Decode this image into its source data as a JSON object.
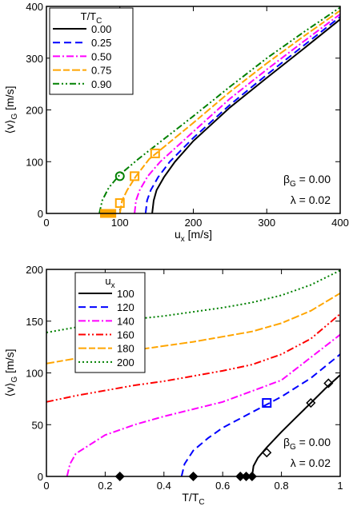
{
  "chart_data": [
    {
      "type": "line",
      "xlabel": "u",
      "xlabel_sub": "x",
      "xlabel_unit": " [m/s]",
      "ylabel": "⟨v⟩",
      "ylabel_sub": "G",
      "ylabel_unit": " [m/s]",
      "xlim": [
        0,
        400
      ],
      "ylim": [
        0,
        400
      ],
      "xticks": [
        0,
        100,
        200,
        300,
        400
      ],
      "yticks": [
        0,
        100,
        200,
        300,
        400
      ],
      "grid": false,
      "legend_title": "T/T",
      "legend_title_sub": "C",
      "legend_position": "top-left",
      "annotation_beta": "β",
      "annotation_beta_sub": "G",
      "annotation_beta_rest": " = 0.00",
      "annotation_lambda": "λ = 0.02",
      "series": [
        {
          "name": "0.00",
          "color": "#000000",
          "dash": "",
          "x0": 144,
          "x": [
            144,
            146,
            150,
            160,
            175,
            200,
            250,
            300,
            350,
            400
          ],
          "y": [
            0,
            25,
            45,
            70,
            100,
            140,
            205,
            262,
            318,
            375
          ]
        },
        {
          "name": "0.25",
          "color": "#0000ff",
          "dash": "9,5",
          "x0": 135,
          "x": [
            135,
            137,
            142,
            152,
            168,
            200,
            250,
            300,
            350,
            400
          ],
          "y": [
            0,
            25,
            45,
            70,
            100,
            146,
            210,
            268,
            324,
            380
          ]
        },
        {
          "name": "0.50",
          "color": "#ff00ff",
          "dash": "9,3,2,3",
          "x0": 120,
          "x": [
            120,
            122,
            127,
            138,
            155,
            200,
            250,
            300,
            350,
            400
          ],
          "y": [
            0,
            25,
            45,
            72,
            100,
            158,
            222,
            278,
            332,
            385
          ]
        },
        {
          "name": "0.75",
          "color": "#ffa500",
          "dash": "10,3,8,3",
          "x0": 100,
          "x": [
            100,
            103,
            110,
            122,
            140,
            200,
            250,
            300,
            350,
            400
          ],
          "y": [
            0,
            25,
            45,
            72,
            105,
            175,
            235,
            290,
            342,
            392
          ]
        },
        {
          "name": "0.90",
          "color": "#008000",
          "dash": "8,3,2,3,2,3",
          "x0": 72,
          "x": [
            72,
            76,
            85,
            100,
            125,
            200,
            250,
            300,
            350,
            400
          ],
          "y": [
            0,
            25,
            50,
            75,
            105,
            188,
            245,
            300,
            350,
            398
          ]
        }
      ],
      "markers": [
        {
          "x": 148,
          "y": 116,
          "shape": "square-open",
          "color": "#ffa500"
        },
        {
          "x": 120,
          "y": 72,
          "shape": "square-open",
          "color": "#ffa500"
        },
        {
          "x": 100,
          "y": 20,
          "shape": "square-open",
          "color": "#ffa500"
        },
        {
          "x": 100,
          "y": 72,
          "shape": "circle-open",
          "color": "#008000"
        },
        {
          "x": 79,
          "y": 0,
          "shape": "square-filled",
          "color": "#ffa500"
        },
        {
          "x": 84,
          "y": 0,
          "shape": "square-filled",
          "color": "#ffa500"
        },
        {
          "x": 89,
          "y": 0,
          "shape": "square-filled",
          "color": "#ffa500"
        }
      ]
    },
    {
      "type": "line",
      "xlabel": "T/T",
      "xlabel_sub": "C",
      "xlabel_unit": "",
      "ylabel": "⟨v⟩",
      "ylabel_sub": "G",
      "ylabel_unit": " [m/s]",
      "xlim": [
        0,
        1
      ],
      "ylim": [
        0,
        200
      ],
      "xticks": [
        0,
        0.2,
        0.4,
        0.6,
        0.8,
        1
      ],
      "xtick_labels": [
        "0",
        "0.2",
        "0.4",
        "0.6",
        "0.8",
        "1"
      ],
      "yticks": [
        0,
        50,
        100,
        150,
        200
      ],
      "grid": false,
      "legend_title": "u",
      "legend_title_sub": "x",
      "legend_position": "top-left",
      "annotation_beta": "β",
      "annotation_beta_sub": "G",
      "annotation_beta_rest": " = 0.00",
      "annotation_lambda": "λ = 0.02",
      "series": [
        {
          "name": "100",
          "color": "#000000",
          "dash": "",
          "x": [
            0.7,
            0.705,
            0.72,
            0.75,
            0.8,
            0.85,
            0.9,
            0.95,
            1.0
          ],
          "y": [
            0,
            10,
            18,
            28,
            43,
            57,
            71,
            85,
            98
          ]
        },
        {
          "name": "120",
          "color": "#0000ff",
          "dash": "9,5",
          "x": [
            0.46,
            0.47,
            0.5,
            0.55,
            0.6,
            0.7,
            0.8,
            0.9,
            1.0
          ],
          "y": [
            0,
            12,
            25,
            37,
            47,
            62,
            77,
            95,
            118
          ]
        },
        {
          "name": "140",
          "color": "#ff00ff",
          "dash": "9,3,2,3",
          "x": [
            0.07,
            0.08,
            0.1,
            0.2,
            0.3,
            0.4,
            0.6,
            0.8,
            1.0
          ],
          "y": [
            0,
            12,
            22,
            40,
            50,
            58,
            72,
            93,
            137
          ]
        },
        {
          "name": "160",
          "color": "#ff0000",
          "dash": "9,3,2,3,2,3",
          "x": [
            0,
            0.1,
            0.2,
            0.3,
            0.4,
            0.5,
            0.6,
            0.7,
            0.8,
            0.9,
            1.0
          ],
          "y": [
            72,
            78,
            83,
            88,
            92,
            97,
            102,
            108,
            118,
            133,
            157
          ]
        },
        {
          "name": "180",
          "color": "#ffa500",
          "dash": "10,3,8,3",
          "x": [
            0,
            0.1,
            0.2,
            0.3,
            0.4,
            0.5,
            0.6,
            0.7,
            0.8,
            0.9,
            1.0
          ],
          "y": [
            109,
            114,
            118,
            122,
            126,
            130,
            135,
            140,
            148,
            160,
            177
          ]
        },
        {
          "name": "200",
          "color": "#008000",
          "dash": "2,3",
          "x": [
            0,
            0.1,
            0.2,
            0.3,
            0.4,
            0.5,
            0.6,
            0.7,
            0.8,
            0.9,
            1.0
          ],
          "y": [
            139,
            144,
            148,
            152,
            155,
            159,
            163,
            168,
            175,
            185,
            199
          ]
        }
      ],
      "markers": [
        {
          "x": 0.75,
          "y": 71,
          "shape": "square-open",
          "color": "#0000ff"
        },
        {
          "x": 0.75,
          "y": 23,
          "shape": "diamond-open",
          "color": "#000000"
        },
        {
          "x": 0.9,
          "y": 71,
          "shape": "diamond-open",
          "color": "#000000"
        },
        {
          "x": 0.96,
          "y": 90,
          "shape": "diamond-open",
          "color": "#000000"
        },
        {
          "x": 0.25,
          "y": 0,
          "shape": "diamond-filled",
          "color": "#000000"
        },
        {
          "x": 0.5,
          "y": 0,
          "shape": "diamond-filled",
          "color": "#000000"
        },
        {
          "x": 0.66,
          "y": 0,
          "shape": "diamond-filled",
          "color": "#000000"
        },
        {
          "x": 0.68,
          "y": 0,
          "shape": "diamond-filled",
          "color": "#000000"
        },
        {
          "x": 0.7,
          "y": 0,
          "shape": "diamond-filled",
          "color": "#000000"
        }
      ]
    }
  ]
}
